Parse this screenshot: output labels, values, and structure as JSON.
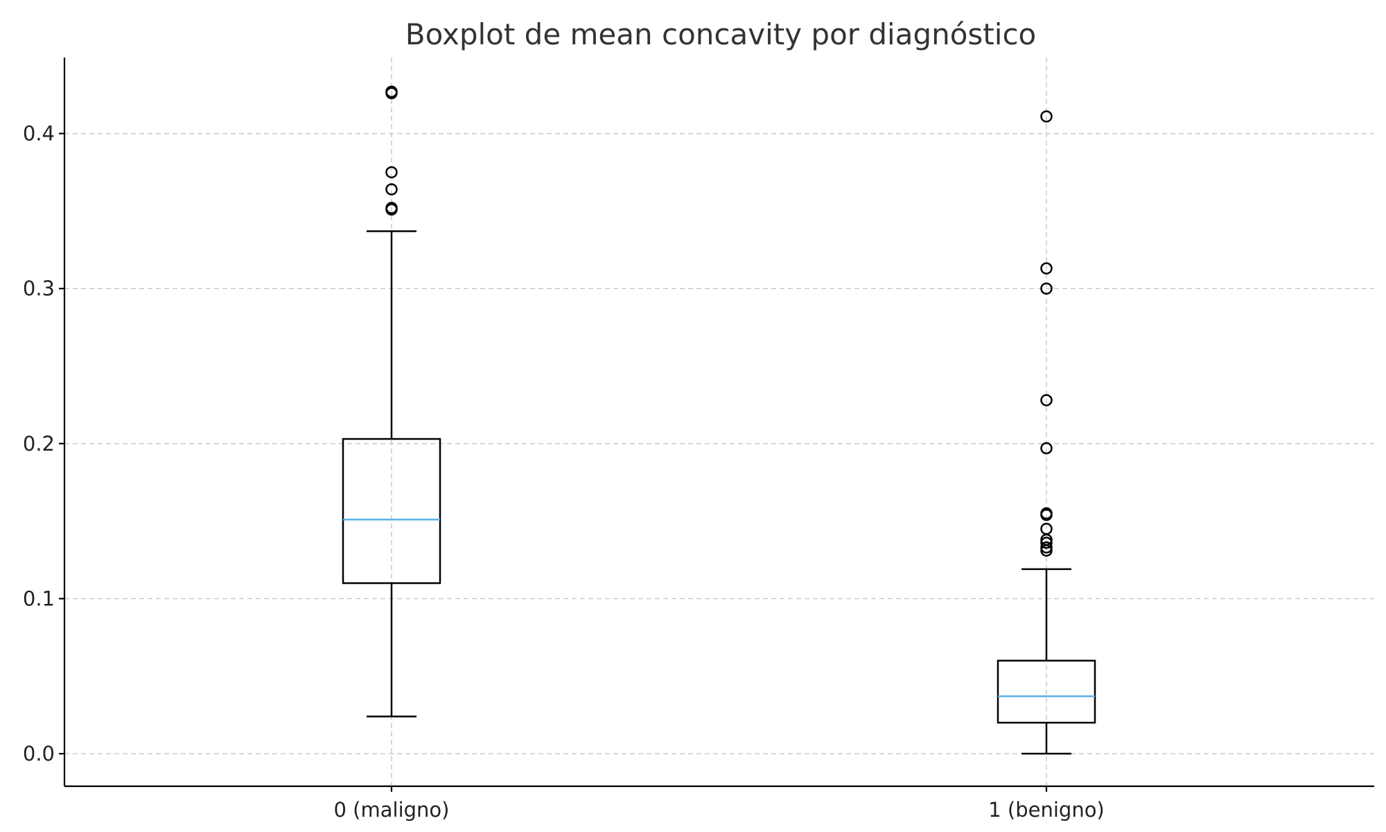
{
  "chart_data": {
    "type": "boxplot",
    "title": "Boxplot de mean concavity por diagnóstico",
    "xlabel": "",
    "ylabel": "",
    "ylim": [
      -0.021,
      0.449
    ],
    "yticks": [
      0.0,
      0.1,
      0.2,
      0.3,
      0.4
    ],
    "ytick_labels": [
      "0.0",
      "0.1",
      "0.2",
      "0.3",
      "0.4"
    ],
    "grid": true,
    "categories": [
      "0 (maligno)",
      "1 (benigno)"
    ],
    "boxes": [
      {
        "category": "0 (maligno)",
        "whisker_low": 0.024,
        "q1": 0.11,
        "median": 0.151,
        "q3": 0.203,
        "whisker_high": 0.337,
        "fliers": [
          0.427,
          0.426,
          0.375,
          0.364,
          0.352,
          0.351
        ]
      },
      {
        "category": "1 (benigno)",
        "whisker_low": 0.0,
        "q1": 0.02,
        "median": 0.037,
        "q3": 0.06,
        "whisker_high": 0.119,
        "fliers": [
          0.411,
          0.313,
          0.3,
          0.228,
          0.197,
          0.155,
          0.154,
          0.145,
          0.138,
          0.136,
          0.133,
          0.131
        ]
      }
    ],
    "colors": {
      "median": "#5aaee6",
      "box": "#000000",
      "grid": "#c8c8c8"
    }
  }
}
